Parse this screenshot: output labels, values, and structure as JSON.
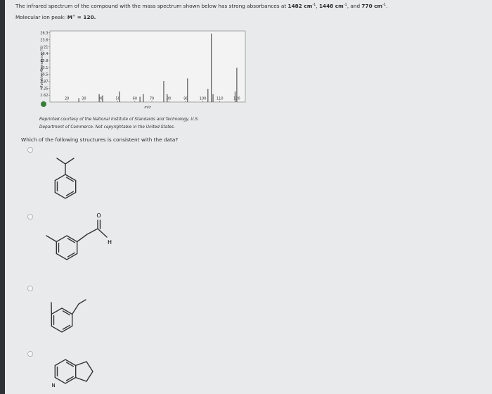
{
  "question": {
    "segments": [
      {
        "text": "The infrared spectrum of the compound with the mass spectrum shown below has strong absorbances at "
      },
      {
        "text": "1482 cm",
        "bold": true
      },
      {
        "text": "-1",
        "sup": true
      },
      {
        "text": ", "
      },
      {
        "text": "1448 cm",
        "bold": true
      },
      {
        "text": "-1",
        "sup": true
      },
      {
        "text": ", and "
      },
      {
        "text": "770 cm",
        "bold": true
      },
      {
        "text": "-1",
        "sup": true
      },
      {
        "text": "."
      }
    ]
  },
  "molecular_ion": {
    "segments": [
      {
        "text": "Molecular ion peak: "
      },
      {
        "text": "M",
        "bold": true
      },
      {
        "text": "+",
        "sup": true
      },
      {
        "text": " = 120.",
        "bold": true
      }
    ]
  },
  "chart_data": {
    "type": "bar",
    "xlabel": "m/z",
    "ylabel": "Relative Abundance (%)",
    "x": [
      27,
      39,
      41,
      51,
      63,
      65,
      77,
      79,
      91,
      103,
      105,
      106,
      119,
      120
    ],
    "values": [
      1.5,
      3,
      2.5,
      4,
      2,
      3,
      8,
      3,
      9,
      5,
      26,
      3,
      4,
      13
    ],
    "color": "#555555",
    "xlim": [
      10,
      125
    ],
    "ylim": [
      0,
      27
    ],
    "xticks": [
      20,
      30,
      40,
      50,
      60,
      70,
      80,
      90,
      100,
      110,
      120
    ],
    "yticks": [
      2.62,
      5.25,
      7.87,
      10.5,
      13.1,
      15.8,
      18.4,
      21,
      23.6,
      26.3
    ]
  },
  "caption": [
    "Reprinted courtesy of the National Institute of Standards and Technology, U.S.",
    "Department of Commerce. Not copyrightable in the United States."
  ],
  "prompt": "Which of the following structures is consistent with the data?",
  "structure_labels": {
    "b": {
      "oxygen": "O",
      "hydrogen": "H"
    },
    "d": {
      "nitrogen": "N"
    }
  }
}
